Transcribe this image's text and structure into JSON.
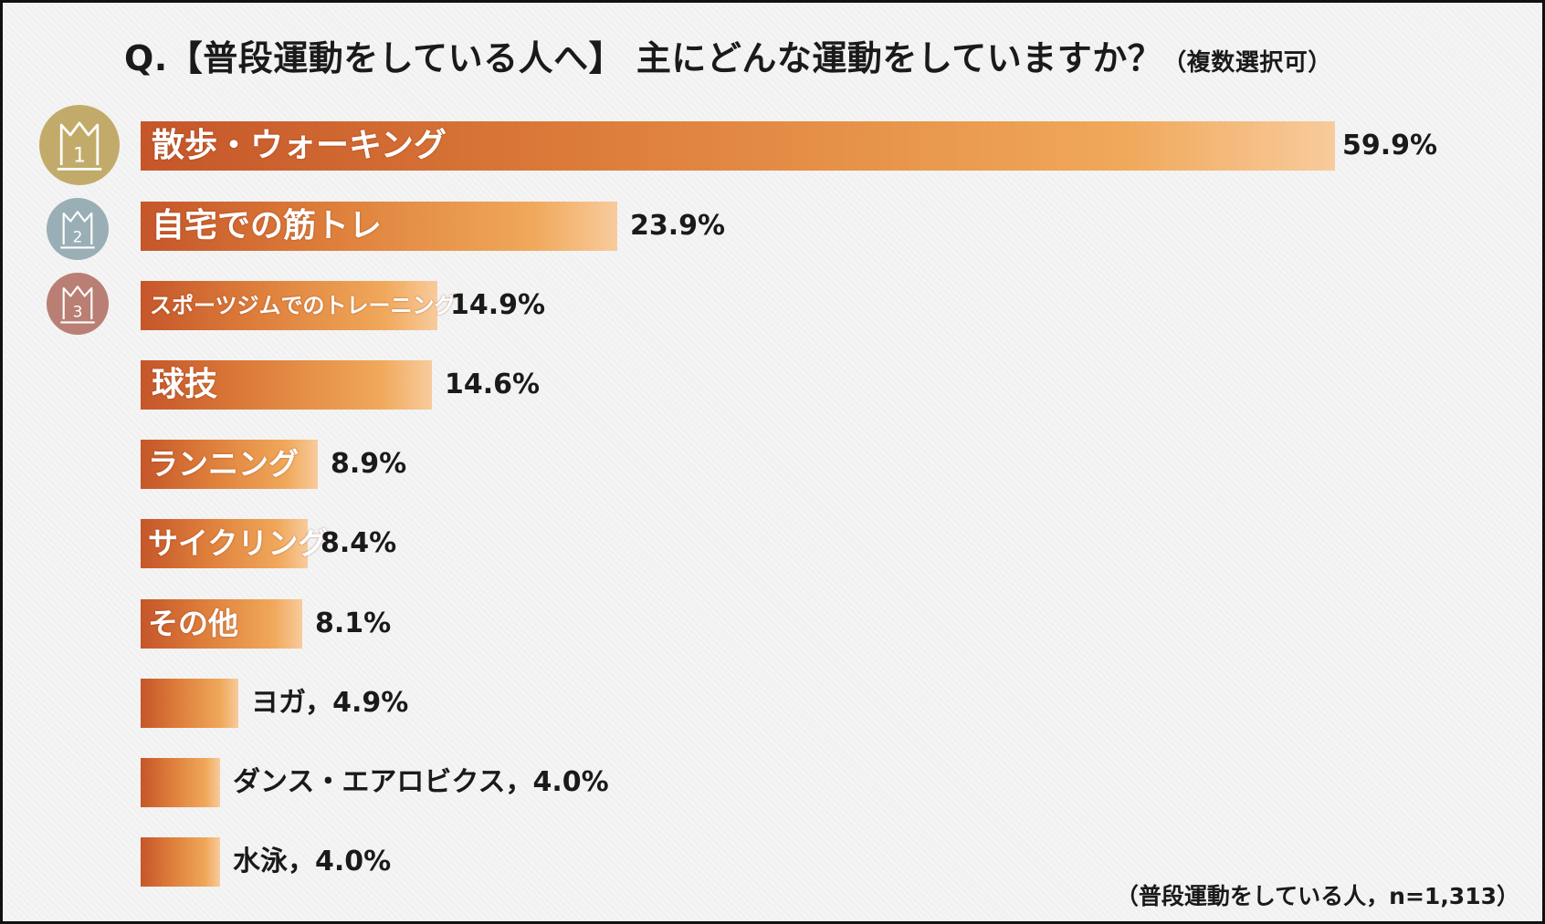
{
  "title": {
    "main": "Q.【普段運動をしている人へ】 主にどんな運動をしていますか？",
    "sub": "（複数選択可）"
  },
  "footnote": "（普段運動をしている人，n=1,313）",
  "colors": {
    "bar_start": "#c5562a",
    "bar_end": "#f8cb9c",
    "medal_gold": "#c2ab6a",
    "medal_silver": "#9aaeb6",
    "medal_bronze": "#b97f74"
  },
  "medals": [
    {
      "rank": "1",
      "icon": "crown-1-icon"
    },
    {
      "rank": "2",
      "icon": "crown-2-icon"
    },
    {
      "rank": "3",
      "icon": "crown-3-icon"
    }
  ],
  "chart_data": {
    "type": "bar",
    "orientation": "horizontal",
    "title": "Q.【普段運動をしている人へ】 主にどんな運動をしていますか？（複数選択可）",
    "xlim": [
      0,
      65
    ],
    "grid": false,
    "categories": [
      "散歩・ウォーキング",
      "自宅での筋トレ",
      "スポーツジムでのトレーニング",
      "球技",
      "ランニング",
      "サイクリング",
      "その他",
      "ヨガ",
      "ダンス・エアロビクス",
      "水泳"
    ],
    "values": [
      59.9,
      23.9,
      14.9,
      14.6,
      8.9,
      8.4,
      8.1,
      4.9,
      4.0,
      4.0
    ],
    "value_labels": [
      "59.9%",
      "23.9%",
      "14.9%",
      "14.6%",
      "8.9%",
      "8.4%",
      "8.1%",
      "ヨガ，4.9%",
      "ダンス・エアロビクス，4.0%",
      "水泳，4.0%"
    ],
    "bar_text": [
      "散歩・ウォーキング",
      "自宅での筋トレ",
      "スポーツジムでのトレーニング",
      "球技",
      "ランニング",
      "サイクリング",
      "その他",
      "",
      "",
      ""
    ]
  }
}
